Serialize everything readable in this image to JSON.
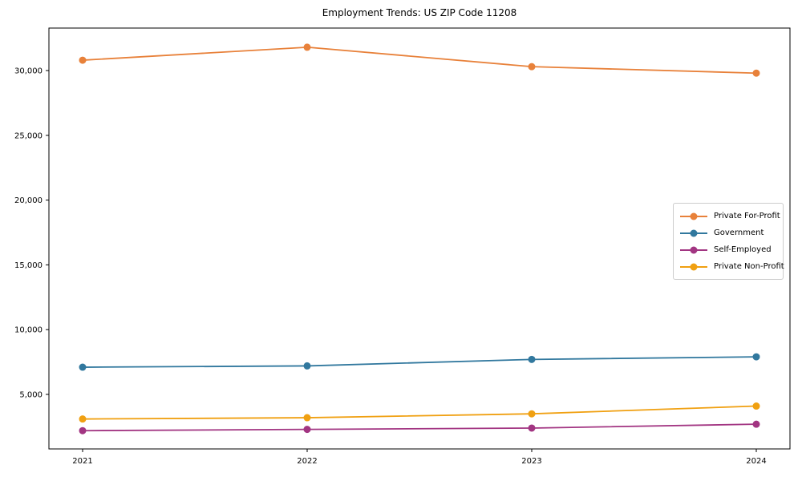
{
  "chart_data": {
    "type": "line",
    "title": "Employment Trends: US ZIP Code 11208",
    "x": [
      2021,
      2022,
      2023,
      2024
    ],
    "x_tick_labels": [
      "2021",
      "2022",
      "2023",
      "2024"
    ],
    "series": [
      {
        "name": "Private For-Profit",
        "color": "#e8813a",
        "values": [
          30800,
          31800,
          30300,
          29800
        ]
      },
      {
        "name": "Government",
        "color": "#31789e",
        "values": [
          7100,
          7200,
          7700,
          7900
        ]
      },
      {
        "name": "Self-Employed",
        "color": "#a23582",
        "values": [
          2200,
          2300,
          2400,
          2700
        ]
      },
      {
        "name": "Private Non-Profit",
        "color": "#f0a011",
        "values": [
          3100,
          3200,
          3500,
          4100
        ]
      }
    ],
    "xlabel": "",
    "ylabel": "",
    "xlim": [
      2020.85,
      2024.15
    ],
    "ylim": [
      790,
      33280
    ],
    "yticks": [
      5000,
      10000,
      15000,
      20000,
      25000,
      30000
    ],
    "ytick_labels": [
      "5,000",
      "10,000",
      "15,000",
      "20,000",
      "25,000",
      "30,000"
    ],
    "grid": false,
    "legend_position": "center right",
    "marker": "circle"
  },
  "style": {
    "background": "#ffffff",
    "axis_color": "#000000",
    "tick_label_color": "#000000",
    "legend_border_color": "#cccccc",
    "line_width": 1.8,
    "marker_radius": 4.5
  }
}
